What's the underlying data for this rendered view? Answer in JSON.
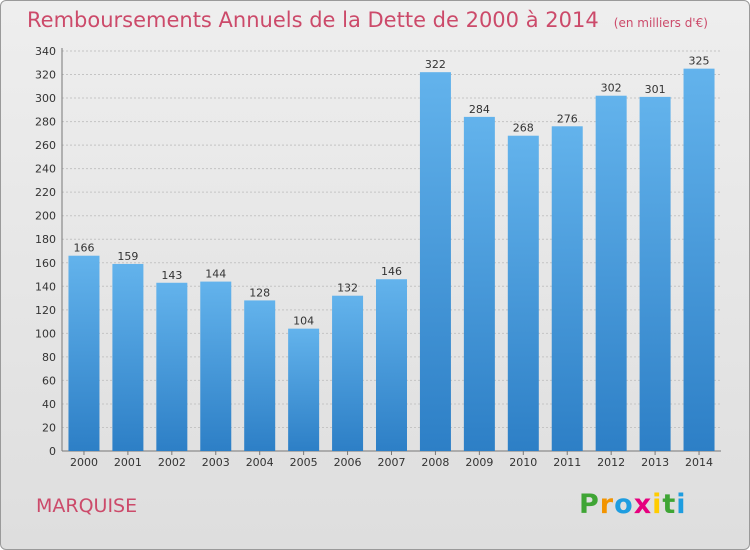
{
  "chart_data": {
    "type": "bar",
    "title": "Remboursements Annuels de la Dette de 2000 à 2014",
    "unit_note": "(en milliers d'€)",
    "categories": [
      "2000",
      "2001",
      "2002",
      "2003",
      "2004",
      "2005",
      "2006",
      "2007",
      "2008",
      "2009",
      "2010",
      "2011",
      "2012",
      "2013",
      "2014"
    ],
    "values": [
      166,
      159,
      143,
      144,
      128,
      104,
      132,
      146,
      322,
      284,
      268,
      276,
      302,
      301,
      325
    ],
    "ylim": [
      0,
      340
    ],
    "yticks": [
      0,
      20,
      40,
      60,
      80,
      100,
      120,
      140,
      160,
      180,
      200,
      220,
      240,
      260,
      280,
      300,
      320,
      340
    ],
    "grid": "horizontal dashed",
    "colors": {
      "bar_top": "#63b3ec",
      "bar_bottom": "#2d7fc6",
      "title": "#cc4a6a"
    }
  },
  "location": "MARQUISE",
  "logo": {
    "letters": [
      "P",
      "r",
      "o",
      "x",
      "i",
      "t",
      "i"
    ],
    "colors": [
      "#3fa535",
      "#f29400",
      "#1e9de0",
      "#e6007e",
      "#ffcc00",
      "#3fa535",
      "#1e9de0"
    ]
  }
}
